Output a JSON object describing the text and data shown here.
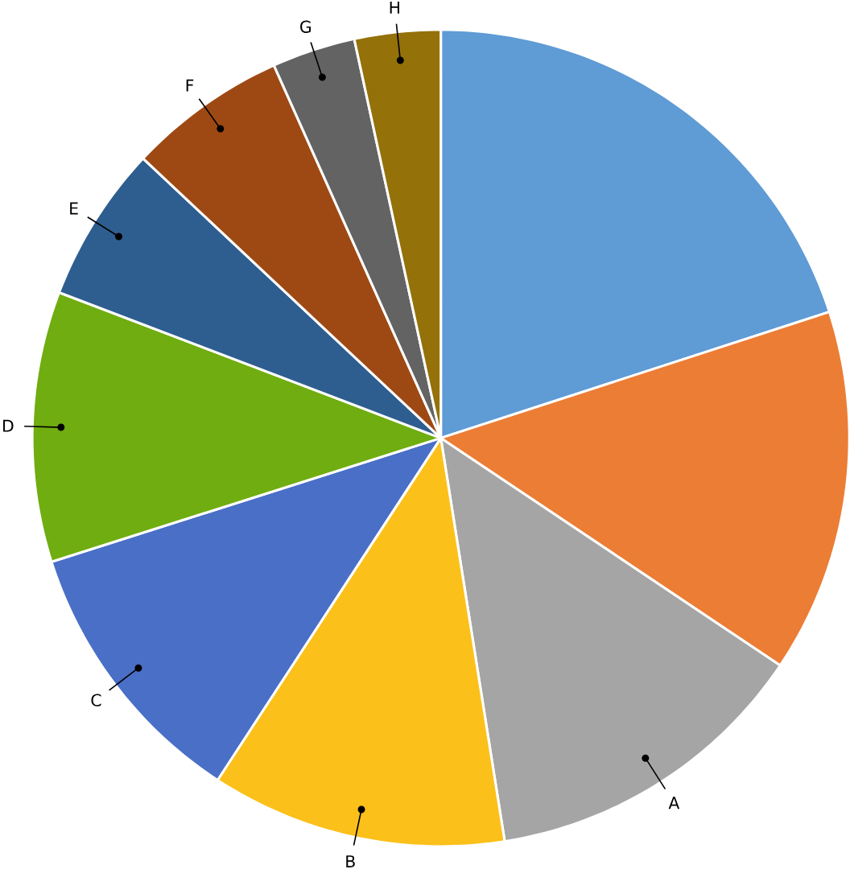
{
  "chart_data": {
    "type": "pie",
    "categories": [
      null,
      null,
      "A",
      "B",
      "C",
      "D",
      "E",
      "F",
      "G",
      "H"
    ],
    "values": [
      20.0,
      14.4,
      13.1,
      11.7,
      10.9,
      10.7,
      6.2,
      6.3,
      3.3,
      3.4
    ],
    "colors": [
      "#5f9bd5",
      "#ec7d35",
      "#a5a5a5",
      "#fbc01a",
      "#4a6fc7",
      "#70ad10",
      "#2e5e8f",
      "#9e4914",
      "#636363",
      "#947109"
    ]
  }
}
